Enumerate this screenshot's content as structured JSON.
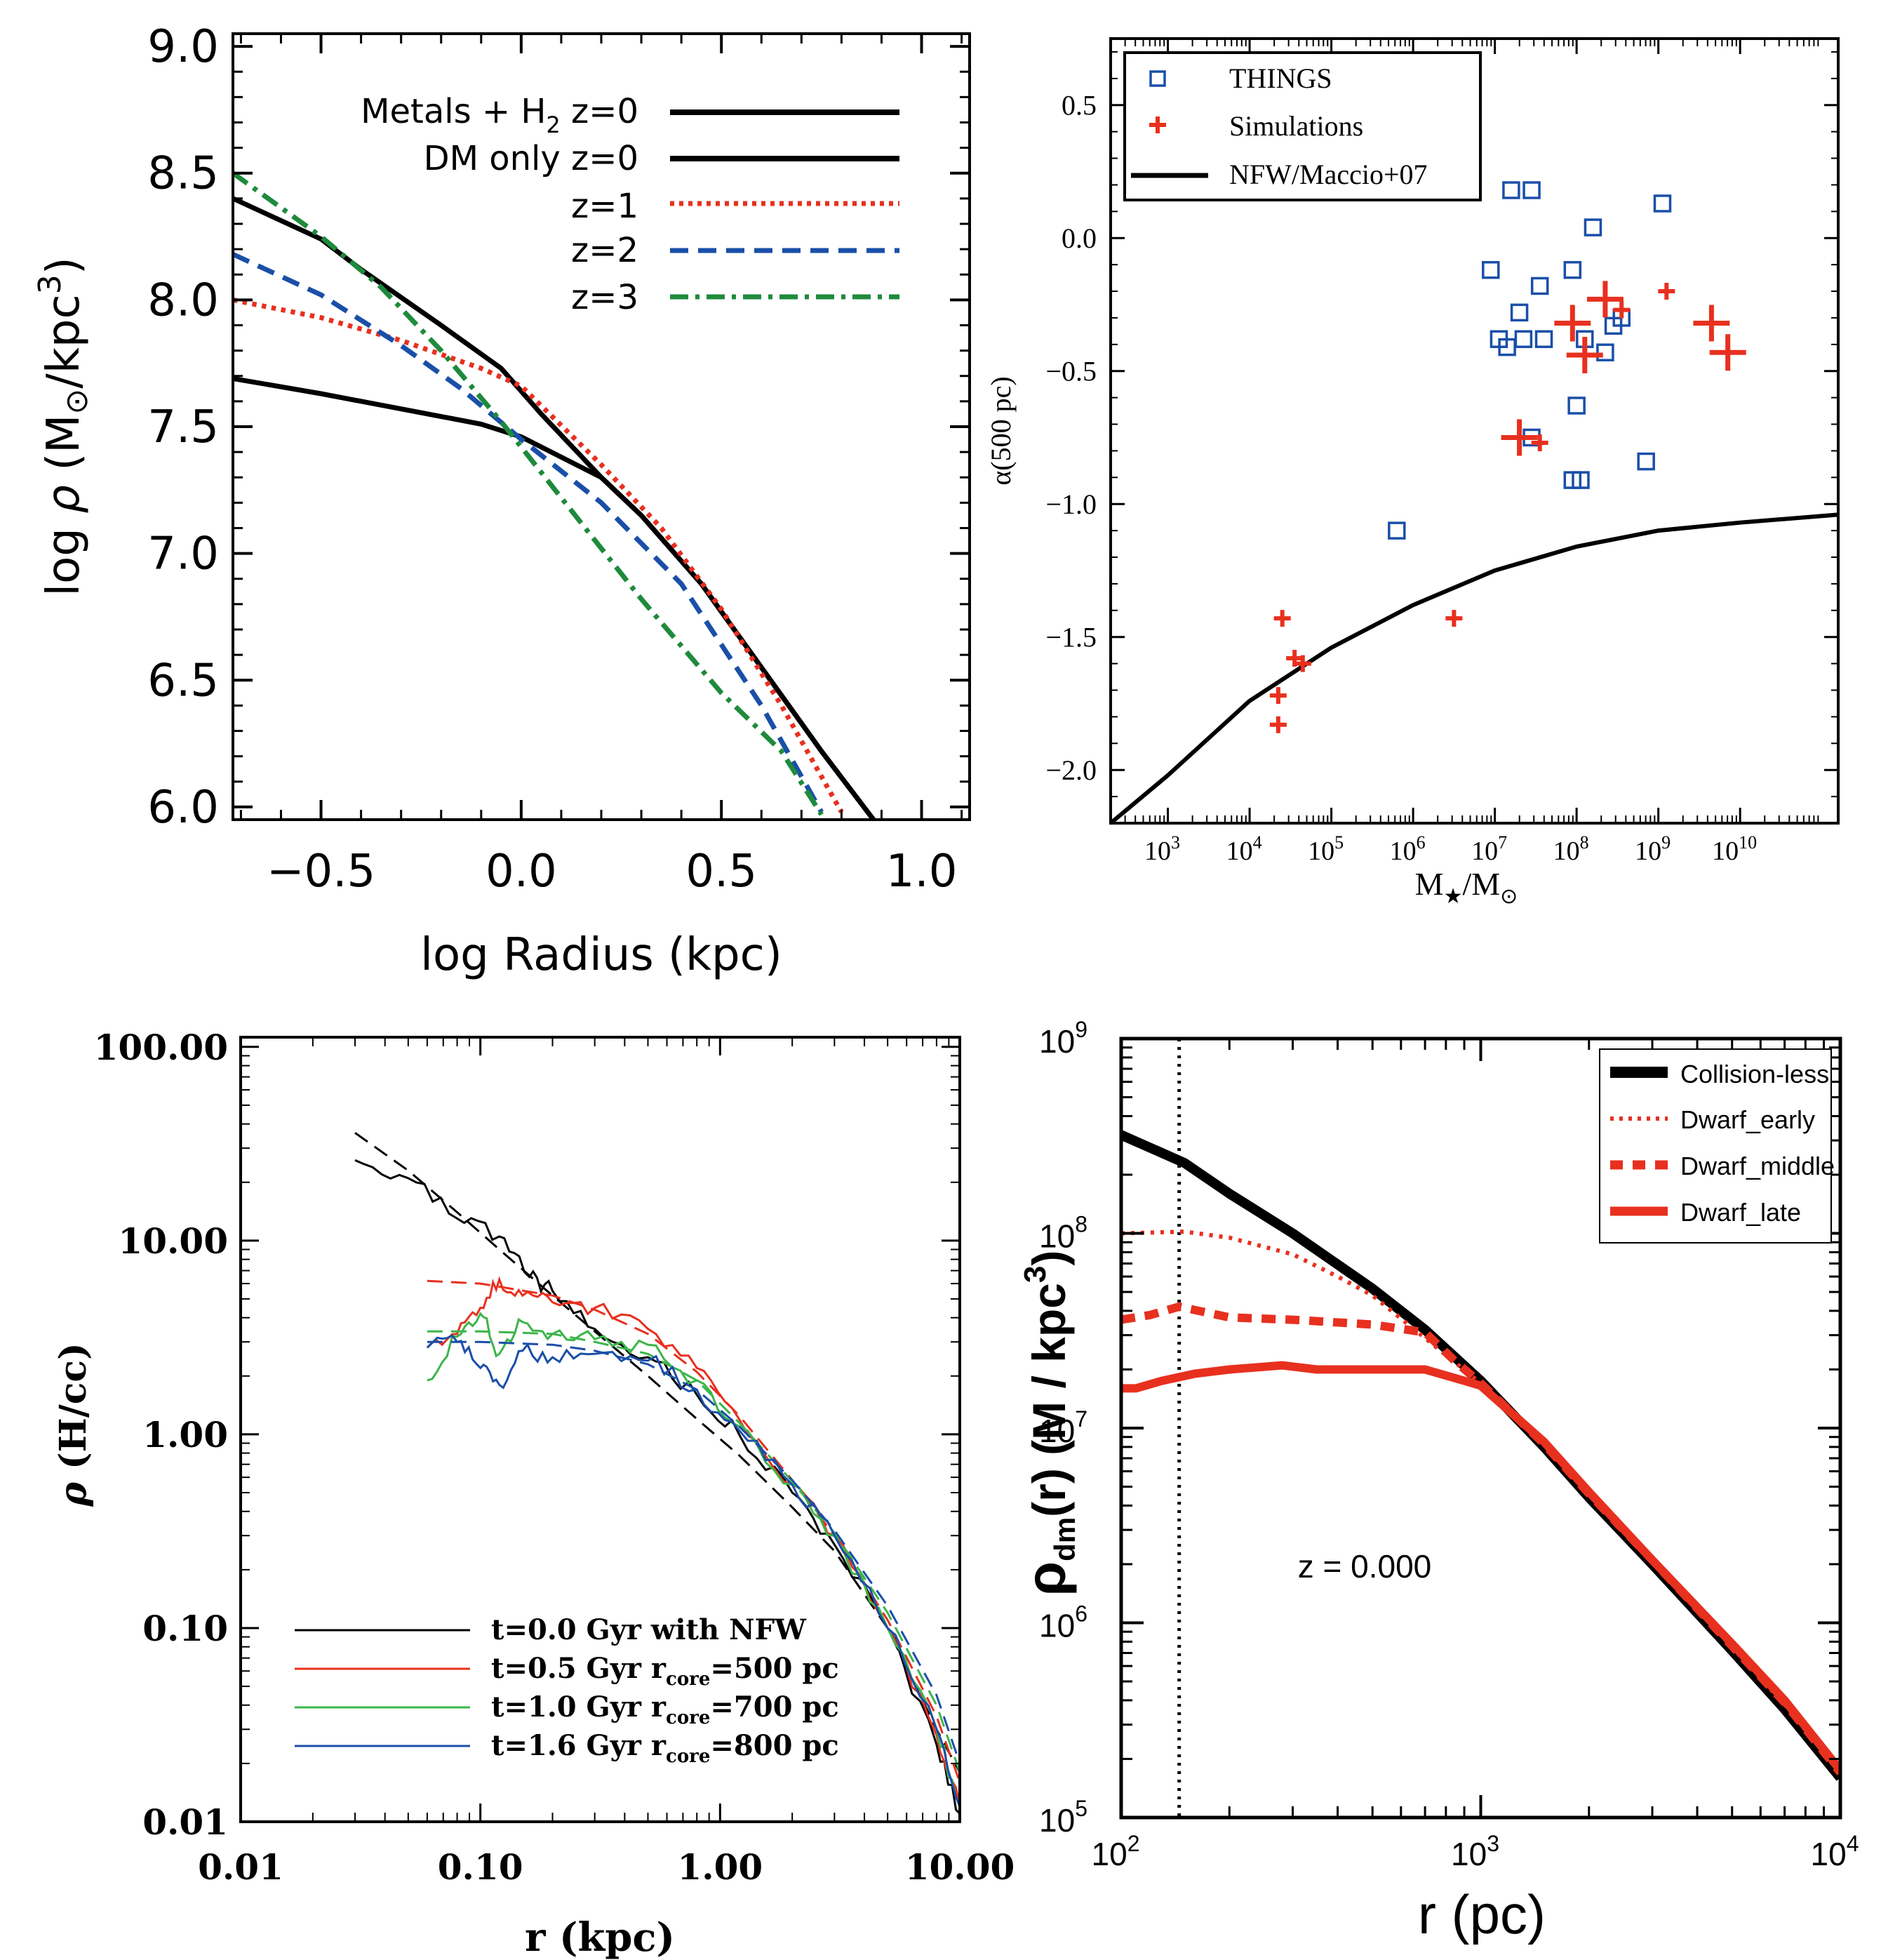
{
  "chart_data": [
    {
      "type": "line",
      "xlabel": "log Radius (kpc)",
      "ylabel_parts": {
        "pre": "log ",
        "rho": "ρ",
        "mid": " (M",
        "sun": "⊙",
        "post": "/kpc",
        "sup": "3",
        "end": ")"
      },
      "xlim": [
        -0.72,
        1.12
      ],
      "ylim": [
        5.95,
        9.05
      ],
      "xticks": [
        -0.5,
        0.0,
        0.5,
        1.0
      ],
      "xtick_labels": [
        "−0.5",
        "0.0",
        "0.5",
        "1.0"
      ],
      "yticks": [
        6.0,
        6.5,
        7.0,
        7.5,
        8.0,
        8.5,
        9.0
      ],
      "ytick_labels": [
        "6.0",
        "6.5",
        "7.0",
        "7.5",
        "8.0",
        "8.5",
        "9.0"
      ],
      "legend": [
        {
          "label_pre": "Metals + H",
          "label_sub": "2",
          "label_post": " z=0",
          "style": "solid-black"
        },
        {
          "label": "DM only z=0",
          "style": "solid-black"
        },
        {
          "label": "z=1",
          "style": "dotted-red"
        },
        {
          "label": "z=2",
          "style": "dashed-blue"
        },
        {
          "label": "z=3",
          "style": "dashdot-green"
        }
      ],
      "series": [
        {
          "color": "#000000",
          "dash": "solid",
          "x": [
            -0.72,
            -0.5,
            -0.3,
            -0.1,
            0.0,
            0.2,
            0.3,
            0.45,
            0.6,
            0.75,
            0.88
          ],
          "y": [
            7.69,
            7.63,
            7.57,
            7.51,
            7.46,
            7.3,
            7.15,
            6.88,
            6.55,
            6.22,
            5.95
          ]
        },
        {
          "color": "#000000",
          "dash": "solid",
          "x": [
            -0.72,
            -0.5,
            -0.4,
            -0.2,
            -0.05,
            0.05,
            0.2,
            0.3,
            0.45,
            0.6,
            0.75,
            0.88
          ],
          "y": [
            8.4,
            8.24,
            8.12,
            7.9,
            7.73,
            7.55,
            7.3,
            7.15,
            6.88,
            6.55,
            6.22,
            5.95
          ]
        },
        {
          "color": "#e8301f",
          "dash": "dotted",
          "x": [
            -0.72,
            -0.5,
            -0.3,
            -0.1,
            0.0,
            0.2,
            0.35,
            0.5,
            0.65,
            0.8
          ],
          "y": [
            8.0,
            7.93,
            7.84,
            7.73,
            7.66,
            7.35,
            7.1,
            6.78,
            6.4,
            5.98
          ]
        },
        {
          "color": "#1a4fa8",
          "dash": "dashed",
          "x": [
            -0.72,
            -0.5,
            -0.3,
            -0.15,
            0.0,
            0.2,
            0.4,
            0.6,
            0.75
          ],
          "y": [
            8.18,
            8.02,
            7.82,
            7.65,
            7.45,
            7.2,
            6.88,
            6.4,
            5.98
          ]
        },
        {
          "color": "#1e8a3c",
          "dash": "dashdot",
          "x": [
            -0.72,
            -0.5,
            -0.35,
            -0.2,
            -0.05,
            0.1,
            0.3,
            0.5,
            0.65,
            0.75
          ],
          "y": [
            8.5,
            8.25,
            8.05,
            7.8,
            7.52,
            7.22,
            6.82,
            6.45,
            6.22,
            5.97
          ]
        }
      ]
    },
    {
      "type": "scatter",
      "xlabel_parts": {
        "pre": "M",
        "star": "★",
        "mid": "/M",
        "sun": "⊙"
      },
      "ylabel": "α(500 pc)",
      "xlim_log10": [
        2.3,
        11.2
      ],
      "ylim": [
        -2.2,
        0.75
      ],
      "xtick_exponents": [
        3,
        4,
        5,
        6,
        7,
        8,
        9,
        10
      ],
      "xtick_base": "10",
      "yticks": [
        -2.0,
        -1.5,
        -1.0,
        -0.5,
        0.0,
        0.5
      ],
      "ytick_labels": [
        "−2.0",
        "−1.5",
        "−1.0",
        "−0.5",
        "0.0",
        "0.5"
      ],
      "legend": [
        {
          "label": "THINGS",
          "marker": "square-blue"
        },
        {
          "label": "Simulations",
          "marker": "plus-red"
        },
        {
          "label": "NFW/Maccio+07",
          "marker": "line-black"
        }
      ],
      "things": {
        "logx": [
          5.8,
          6.95,
          7.2,
          7.45,
          7.3,
          7.35,
          7.05,
          7.15,
          7.6,
          7.55,
          7.45,
          7.95,
          8.0,
          8.1,
          8.2,
          8.35,
          8.45,
          8.55,
          8.85,
          9.05,
          7.95,
          8.05
        ],
        "y": [
          -1.1,
          -0.12,
          0.18,
          0.18,
          -0.28,
          -0.38,
          -0.38,
          -0.41,
          -0.38,
          -0.18,
          -0.75,
          -0.12,
          -0.63,
          -0.38,
          0.04,
          -0.43,
          -0.33,
          -0.3,
          -0.84,
          0.13,
          -0.91,
          -0.91
        ]
      },
      "simulations_large": {
        "logx": [
          7.3,
          7.95,
          8.1,
          8.35,
          9.65,
          9.85
        ],
        "y": [
          -0.75,
          -0.32,
          -0.44,
          -0.23,
          -0.32,
          -0.43
        ]
      },
      "simulations_small": {
        "logx": [
          4.4,
          4.55,
          4.65,
          4.35,
          4.35,
          6.5,
          7.55,
          8.55,
          9.1
        ],
        "y": [
          -1.43,
          -1.58,
          -1.6,
          -1.72,
          -1.83,
          -1.43,
          -0.77,
          -0.27,
          -0.2
        ]
      },
      "nfw_line": {
        "logx": [
          2.3,
          3.0,
          4.0,
          5.0,
          6.0,
          7.0,
          8.0,
          9.0,
          10.0,
          11.2
        ],
        "y": [
          -2.2,
          -2.02,
          -1.74,
          -1.54,
          -1.38,
          -1.25,
          -1.16,
          -1.1,
          -1.07,
          -1.04
        ]
      }
    },
    {
      "type": "line",
      "xlabel": "r (kpc)",
      "ylabel_parts": {
        "rho": "ρ",
        "post": " (H/cc)"
      },
      "xlim_log10": [
        -2,
        1
      ],
      "ylim_log10": [
        -2,
        2.05
      ],
      "xticks_log10": [
        -2,
        -1,
        0,
        1
      ],
      "xtick_labels": [
        "0.01",
        "0.10",
        "1.00",
        "10.00"
      ],
      "yticks_log10": [
        -2,
        -1,
        0,
        1,
        2
      ],
      "ytick_labels": [
        "0.01",
        "0.10",
        "1.00",
        "10.00",
        "100.00"
      ],
      "legend": [
        {
          "label": "t=0.0 Gyr with NFW",
          "color": "#000000"
        },
        {
          "label_pre": "t=0.5 Gyr r",
          "label_sub": "core",
          "label_post": "=500 pc",
          "color": "#e8301f"
        },
        {
          "label_pre": "t=1.0 Gyr r",
          "label_sub": "core",
          "label_post": "=700 pc",
          "color": "#3cb54a"
        },
        {
          "label_pre": "t=1.6 Gyr r",
          "label_sub": "core",
          "label_post": "=800 pc",
          "color": "#1a4fa8"
        }
      ],
      "series": [
        {
          "color": "#000000",
          "dash": "solid",
          "jitter": 0.04,
          "x": [
            0.03,
            0.05,
            0.08,
            0.12,
            0.16,
            0.2,
            0.3,
            0.5,
            0.8,
            1.2,
            2,
            3,
            5,
            8,
            10
          ],
          "y": [
            26,
            21,
            13,
            10.5,
            6.5,
            5.5,
            3.5,
            2.5,
            1.6,
            1.0,
            0.5,
            0.27,
            0.1,
            0.025,
            0.011
          ]
        },
        {
          "color": "#000000",
          "dash": "dashed",
          "jitter": 0,
          "x": [
            0.03,
            0.05,
            0.08,
            0.12,
            0.2,
            0.3,
            0.5,
            0.8,
            1.2,
            2,
            3,
            5,
            8,
            10
          ],
          "y": [
            36,
            23,
            14,
            9,
            5.2,
            3.4,
            2.0,
            1.2,
            0.78,
            0.42,
            0.25,
            0.1,
            0.03,
            0.018
          ]
        },
        {
          "color": "#e8301f",
          "dash": "solid",
          "jitter": 0.04,
          "x": [
            0.06,
            0.08,
            0.1,
            0.12,
            0.15,
            0.2,
            0.3,
            0.5,
            0.8,
            1.2,
            2,
            3,
            5,
            8,
            10
          ],
          "y": [
            2.8,
            3.3,
            4.5,
            6.3,
            5.2,
            4.8,
            4.5,
            3.5,
            2.2,
            1.2,
            0.55,
            0.3,
            0.1,
            0.028,
            0.012
          ]
        },
        {
          "color": "#e8301f",
          "dash": "dashed",
          "jitter": 0,
          "x": [
            0.06,
            0.1,
            0.2,
            0.3,
            0.5,
            0.8,
            1.2,
            2,
            3,
            5,
            8,
            10
          ],
          "y": [
            6.2,
            6.0,
            5.2,
            4.4,
            3.3,
            2.1,
            1.25,
            0.58,
            0.3,
            0.11,
            0.035,
            0.016
          ]
        },
        {
          "color": "#3cb54a",
          "dash": "solid",
          "jitter": 0.05,
          "x": [
            0.06,
            0.08,
            0.1,
            0.12,
            0.15,
            0.2,
            0.3,
            0.5,
            0.8,
            1.2,
            2,
            3,
            5,
            8,
            10
          ],
          "y": [
            1.9,
            3.2,
            4.2,
            2.6,
            3.8,
            3.3,
            3.1,
            2.9,
            1.9,
            1.1,
            0.55,
            0.3,
            0.1,
            0.03,
            0.012
          ]
        },
        {
          "color": "#3cb54a",
          "dash": "dashed",
          "jitter": 0,
          "x": [
            0.06,
            0.1,
            0.2,
            0.3,
            0.5,
            0.8,
            1.2,
            2,
            3,
            5,
            8,
            10
          ],
          "y": [
            3.4,
            3.4,
            3.3,
            3.0,
            2.6,
            1.9,
            1.15,
            0.57,
            0.31,
            0.12,
            0.04,
            0.018
          ]
        },
        {
          "color": "#1a4fa8",
          "dash": "solid",
          "jitter": 0.05,
          "x": [
            0.06,
            0.08,
            0.1,
            0.12,
            0.15,
            0.2,
            0.3,
            0.5,
            0.8,
            1.2,
            2,
            3,
            5,
            8,
            10
          ],
          "y": [
            2.8,
            3.0,
            2.2,
            1.8,
            2.7,
            2.5,
            2.6,
            2.4,
            1.7,
            1.05,
            0.55,
            0.3,
            0.1,
            0.03,
            0.012
          ]
        },
        {
          "color": "#1a4fa8",
          "dash": "dashed",
          "jitter": 0,
          "x": [
            0.06,
            0.1,
            0.2,
            0.3,
            0.5,
            0.8,
            1.2,
            2,
            3,
            5,
            8,
            10
          ],
          "y": [
            3.0,
            3.0,
            2.9,
            2.7,
            2.3,
            1.7,
            1.1,
            0.58,
            0.32,
            0.13,
            0.045,
            0.02
          ]
        }
      ]
    },
    {
      "type": "line",
      "xlabel": "r (pc)",
      "ylabel_parts": {
        "rho": "ρ",
        "sub": "dm",
        "mid": "(r) (M",
        "post": " / kpc",
        "sup": "3",
        "end": ")"
      },
      "xlim_log10": [
        2,
        4
      ],
      "ylim_log10": [
        5,
        9
      ],
      "xtick_exponents": [
        2,
        3,
        4
      ],
      "ytick_exponents": [
        5,
        6,
        7,
        8,
        9
      ],
      "tick_base": "10",
      "annotation": "z = 0.000",
      "vline_x": 145,
      "legend": [
        {
          "label": "Collision-less",
          "style": "thick-black"
        },
        {
          "label": "Dwarf_early",
          "style": "dotted-red"
        },
        {
          "label": "Dwarf_middle",
          "style": "dashed-red"
        },
        {
          "label": "Dwarf_late",
          "style": "thick-red"
        }
      ],
      "series": [
        {
          "color": "#000000",
          "dash": "solid",
          "width": 14,
          "x": [
            100,
            150,
            200,
            300,
            500,
            700,
            1000,
            1500,
            2000,
            3000,
            5000,
            7000,
            10000
          ],
          "y": [
            320000000.0,
            230000000.0,
            160000000.0,
            100000000.0,
            52000000.0,
            32000000.0,
            17500000.0,
            8000000.0,
            4400000.0,
            2000000.0,
            720000.0,
            360000.0,
            160000.0
          ]
        },
        {
          "color": "#e8301f",
          "dash": "dotted",
          "width": 6,
          "x": [
            100,
            150,
            200,
            300,
            400,
            500,
            700,
            1000,
            1500,
            2000,
            3000,
            5000,
            7000,
            10000
          ],
          "y": [
            100000000.0,
            102000000.0,
            95000000.0,
            78000000.0,
            60000000.0,
            48000000.0,
            29000000.0,
            17000000.0,
            8300000.0,
            4600000.0,
            2100000.0,
            750000.0,
            380000.0,
            170000.0
          ]
        },
        {
          "color": "#e8301f",
          "dash": "dashed",
          "width": 12,
          "x": [
            100,
            120,
            145,
            200,
            300,
            500,
            700,
            850,
            1000,
            1500,
            2000,
            3000,
            5000,
            7000,
            10000
          ],
          "y": [
            36000000.0,
            38000000.0,
            42000000.0,
            37000000.0,
            36000000.0,
            34000000.0,
            31000000.0,
            22000000.0,
            17000000.0,
            8300000.0,
            4600000.0,
            2100000.0,
            760000.0,
            390000.0,
            170000.0
          ]
        },
        {
          "color": "#e8301f",
          "dash": "solid",
          "width": 12,
          "x": [
            100,
            110,
            130,
            160,
            200,
            280,
            350,
            500,
            700,
            900,
            1000,
            1500,
            2000,
            3000,
            5000,
            7000,
            10000
          ],
          "y": [
            16000000.0,
            16000000.0,
            17500000.0,
            19000000.0,
            20000000.0,
            21000000.0,
            20000000.0,
            20000000.0,
            20000000.0,
            17500000.0,
            16500000.0,
            8500000.0,
            4700000.0,
            2100000.0,
            780000.0,
            400000.0,
            175000.0
          ]
        }
      ]
    }
  ]
}
